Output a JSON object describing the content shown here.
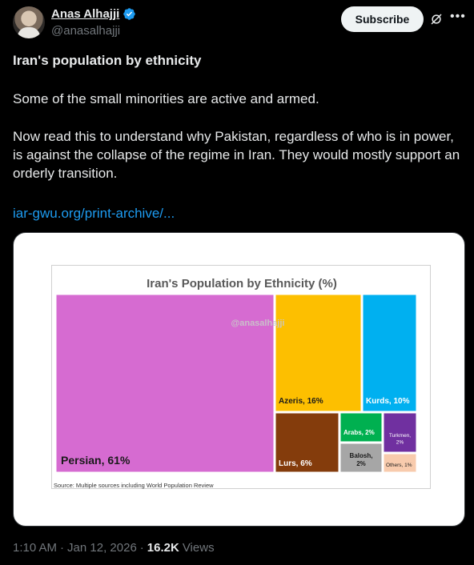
{
  "author": {
    "display_name": "Anas Alhajji",
    "handle": "@anasalhajji"
  },
  "actions": {
    "subscribe_label": "Subscribe"
  },
  "post": {
    "title": "Iran's population by ethnicity",
    "paragraph1": "Some of the small minorities are active and armed.",
    "paragraph2": "Now read this to understand why Pakistan, regardless of who is in power, is against the collapse of the regime in Iran. They would mostly support an orderly transition.",
    "link_text": "iar-gwu.org/print-archive/..."
  },
  "meta": {
    "time": "1:10 AM",
    "separator1": "·",
    "date": "Jan 12, 2026",
    "separator2": "·",
    "views_count": "16.2K",
    "views_label": "Views"
  },
  "colors": {
    "accent": "#1d9bf0",
    "verified": "#1d9bf0"
  },
  "chart_data": {
    "type": "treemap",
    "title": "Iran's Population by Ethnicity (%)",
    "watermark": "@anasalhajji",
    "source": "Source: Multiple sources including World Population Review",
    "items": [
      {
        "label": "Persian, 61%",
        "name": "Persian",
        "value": 61,
        "color": "#d66bd1",
        "text_color": "#1a1a1a"
      },
      {
        "label": "Azeris, 16%",
        "name": "Azeris",
        "value": 16,
        "color": "#fdbf00",
        "text_color": "#1a1a1a"
      },
      {
        "label": "Kurds, 10%",
        "name": "Kurds",
        "value": 10,
        "color": "#00b0f0",
        "text_color": "#ffffff"
      },
      {
        "label": "Lurs, 6%",
        "name": "Lurs",
        "value": 6,
        "color": "#843c0c",
        "text_color": "#ffffff"
      },
      {
        "label": "Arabs, 2%",
        "name": "Arabs",
        "value": 2,
        "color": "#00b050",
        "text_color": "#ffffff"
      },
      {
        "label": "Turkmen, 2%",
        "name": "Turkmen",
        "value": 2,
        "color": "#7030a0",
        "text_color": "#ffffff"
      },
      {
        "label": "Balosh, 2%",
        "name": "Balosh",
        "value": 2,
        "color": "#a6a6a6",
        "text_color": "#1a1a1a"
      },
      {
        "label": "Others, 1%",
        "name": "Others",
        "value": 1,
        "color": "#f8cbad",
        "text_color": "#1a1a1a"
      }
    ]
  }
}
